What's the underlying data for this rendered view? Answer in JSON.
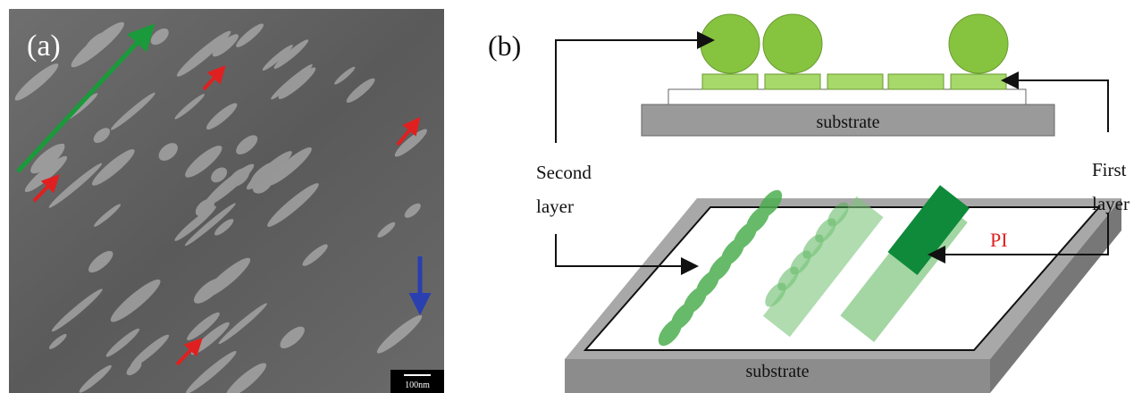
{
  "panel_a": {
    "label": "(a)",
    "scale_bar": "100nm"
  },
  "panel_b": {
    "label": "(b)",
    "top_substrate": "substrate",
    "second_layer": [
      "Second",
      "layer"
    ],
    "first_layer": [
      "First",
      "layer"
    ],
    "film": "PI",
    "bottom_substrate": "substrate"
  }
}
